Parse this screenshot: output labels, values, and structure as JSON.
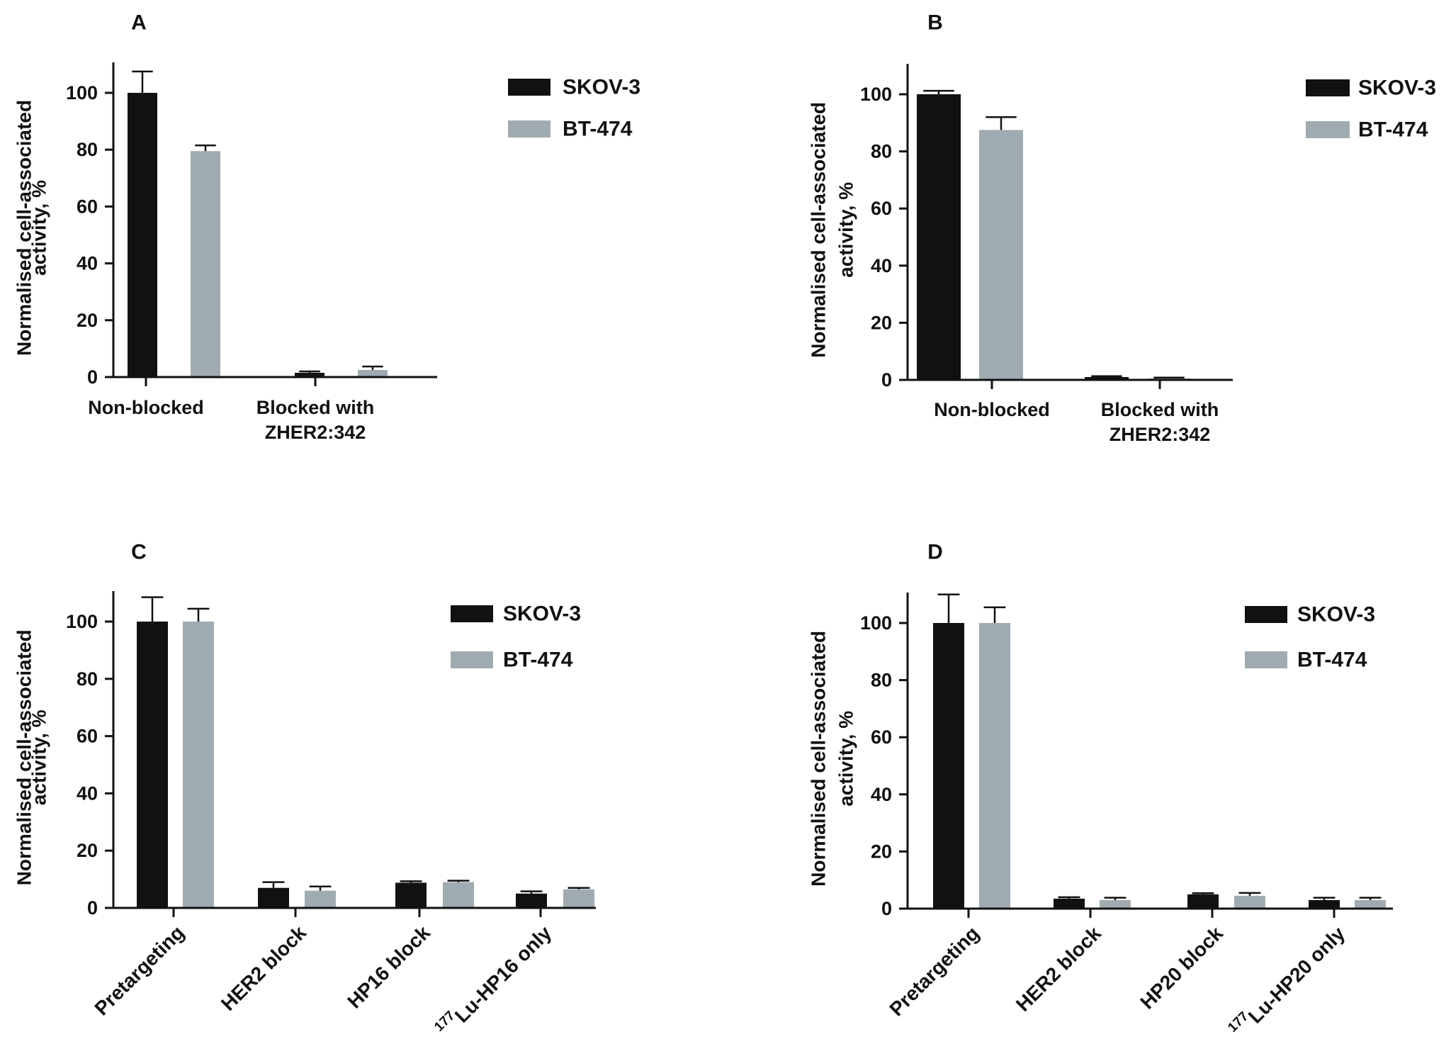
{
  "colors": {
    "axis": "#111111",
    "series": [
      "#111111",
      "#a0abb1"
    ]
  },
  "chart_data": [
    {
      "type": "bar",
      "panel_label": "A",
      "ylabel_lines": [
        "Normalised cell-associated",
        "activity, %"
      ],
      "ylim": [
        0,
        110
      ],
      "yticks": [
        0,
        20,
        40,
        60,
        80,
        100
      ],
      "categories": [
        [
          "Non-blocked"
        ],
        [
          "Blocked with",
          "ZHER2:342"
        ]
      ],
      "category_label_style": "horizontal",
      "series": [
        {
          "name": "SKOV-3",
          "values": [
            100,
            1.5
          ],
          "errors": [
            7.5,
            0.5
          ]
        },
        {
          "name": "BT-474",
          "values": [
            79.5,
            2.5
          ],
          "errors": [
            2.0,
            1.2
          ]
        }
      ]
    },
    {
      "type": "bar",
      "panel_label": "B",
      "ylabel_lines": [
        "Normalised cell-associated",
        "activity, %"
      ],
      "ylim": [
        0,
        110
      ],
      "yticks": [
        0,
        20,
        40,
        60,
        80,
        100
      ],
      "categories": [
        [
          "Non-blocked"
        ],
        [
          "Blocked with",
          "ZHER2:342"
        ]
      ],
      "category_label_style": "horizontal",
      "series": [
        {
          "name": "SKOV-3",
          "values": [
            100,
            1.0
          ],
          "errors": [
            1.2,
            0.3
          ]
        },
        {
          "name": "BT-474",
          "values": [
            87.5,
            0.5
          ],
          "errors": [
            4.5,
            0.3
          ]
        }
      ]
    },
    {
      "type": "bar",
      "panel_label": "C",
      "ylabel_lines": [
        "Normalised cell-associated",
        "activity, %"
      ],
      "ylim": [
        0,
        110
      ],
      "yticks": [
        0,
        20,
        40,
        60,
        80,
        100
      ],
      "categories": [
        [
          "Pretargeting"
        ],
        [
          "HER2 block"
        ],
        [
          "HP16 block"
        ],
        [
          "Lu-HP16 only"
        ]
      ],
      "category_superscripts": [
        "",
        "",
        "",
        "177"
      ],
      "category_label_style": "rotated",
      "series": [
        {
          "name": "SKOV-3",
          "values": [
            100,
            7.0,
            8.8,
            5.0
          ],
          "errors": [
            8.5,
            2.0,
            0.5,
            0.8
          ]
        },
        {
          "name": "BT-474",
          "values": [
            100,
            6.0,
            9.0,
            6.5
          ],
          "errors": [
            4.5,
            1.5,
            0.5,
            0.5
          ]
        }
      ]
    },
    {
      "type": "bar",
      "panel_label": "D",
      "ylabel_lines": [
        "Normalised cell-associated",
        "activity, %"
      ],
      "ylim": [
        0,
        110
      ],
      "yticks": [
        0,
        20,
        40,
        60,
        80,
        100
      ],
      "categories": [
        [
          "Pretargeting"
        ],
        [
          "HER2 block"
        ],
        [
          "HP20 block"
        ],
        [
          "Lu-HP20 only"
        ]
      ],
      "category_superscripts": [
        "",
        "",
        "",
        "177"
      ],
      "category_label_style": "rotated",
      "series": [
        {
          "name": "SKOV-3",
          "values": [
            100,
            3.5,
            5.0,
            3.0
          ],
          "errors": [
            10.0,
            0.5,
            0.4,
            0.8
          ]
        },
        {
          "name": "BT-474",
          "values": [
            100,
            3.0,
            4.5,
            3.0
          ],
          "errors": [
            5.5,
            0.8,
            1.0,
            0.8
          ]
        }
      ]
    }
  ]
}
